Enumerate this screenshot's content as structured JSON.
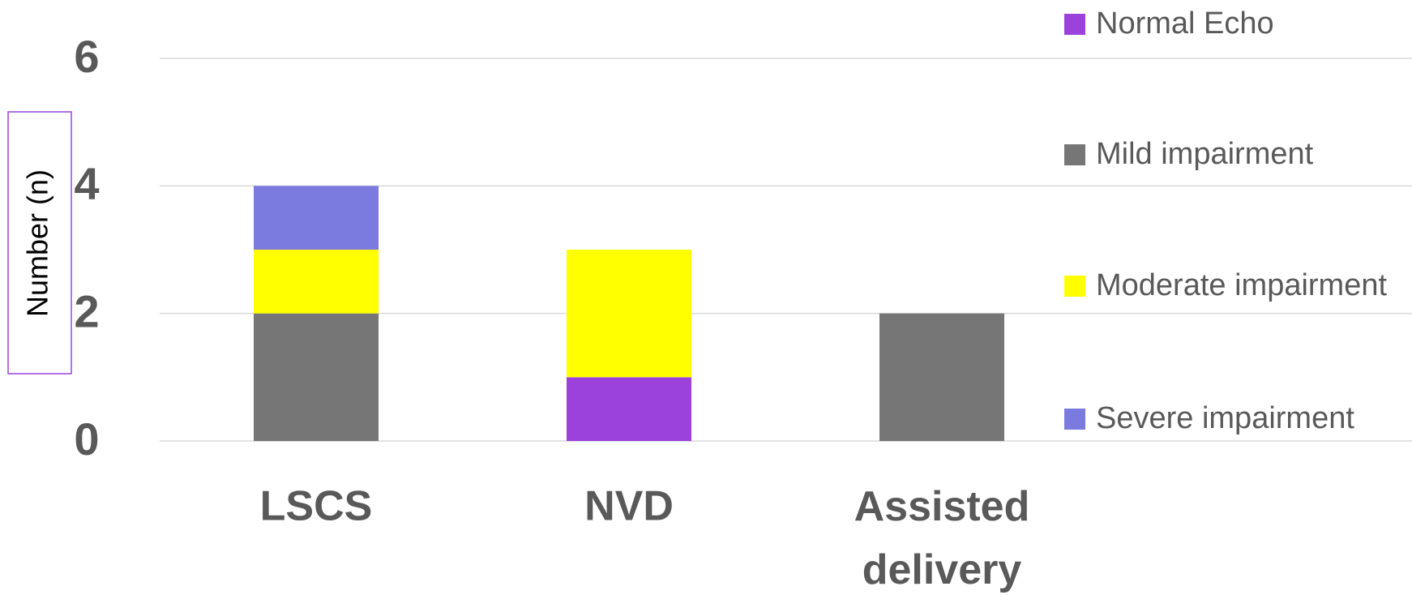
{
  "chart_data": {
    "type": "stacked_bar",
    "y_label": "Number (n)",
    "categories": [
      "LSCS",
      "NVD",
      "Assisted delivery"
    ],
    "series": [
      {
        "name": "Normal Echo",
        "color": "#9b42dd",
        "values": [
          0,
          1,
          0
        ]
      },
      {
        "name": "Mild impairment",
        "color": "#767676",
        "values": [
          2,
          0,
          2
        ]
      },
      {
        "name": "Moderate impairment",
        "color": "#ffff00",
        "values": [
          1,
          2,
          0
        ]
      },
      {
        "name": "Severe impairment",
        "color": "#7b7bdf",
        "values": [
          1,
          0,
          0
        ]
      }
    ],
    "ylim": [
      0,
      6
    ],
    "yticks": [
      0,
      2,
      4,
      6
    ],
    "grid": true,
    "legend": "right"
  }
}
